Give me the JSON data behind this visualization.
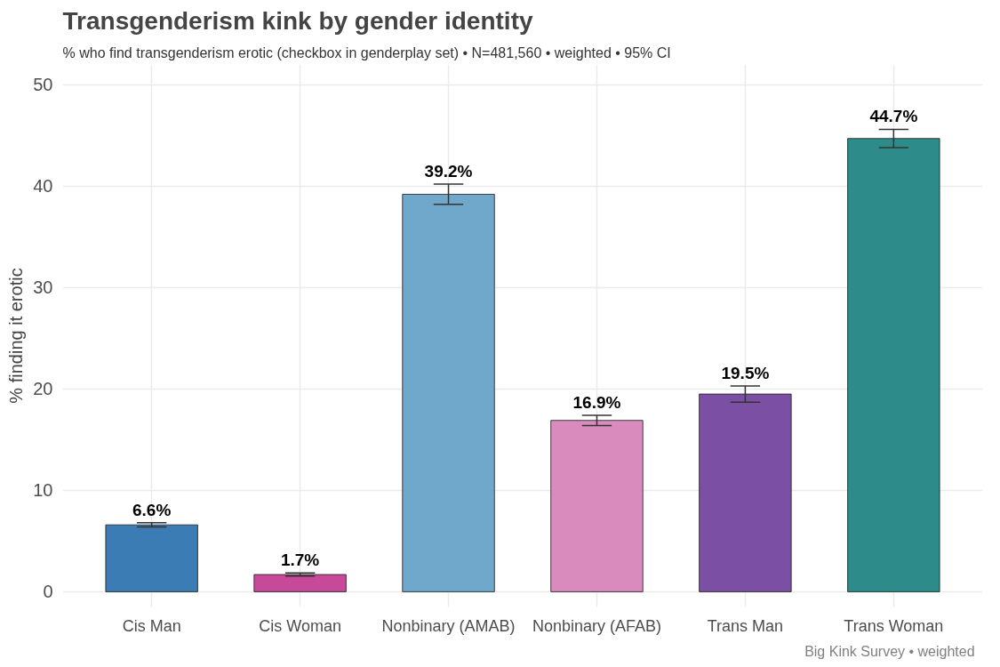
{
  "chart_data": {
    "type": "bar",
    "title": "Transgenderism kink by gender identity",
    "subtitle": "% who find transgenderism erotic (checkbox in genderplay set)  •  N=481,560  •  weighted  •  95% CI",
    "ylabel": "% finding it erotic",
    "categories": [
      "Cis Man",
      "Cis Woman",
      "Nonbinary (AMAB)",
      "Nonbinary (AFAB)",
      "Trans Man",
      "Trans Woman"
    ],
    "values": [
      6.6,
      1.7,
      39.2,
      16.9,
      19.5,
      44.7
    ],
    "colors": [
      "#3c7cb4",
      "#c64a99",
      "#6fa8cb",
      "#d98bbd",
      "#7b4fa3",
      "#2d8b89"
    ],
    "errors": [
      [
        6.4,
        6.8
      ],
      [
        1.55,
        1.85
      ],
      [
        38.2,
        40.2
      ],
      [
        16.4,
        17.4
      ],
      [
        18.7,
        20.3
      ],
      [
        43.8,
        45.6
      ]
    ],
    "value_labels": [
      "6.6%",
      "1.7%",
      "39.2%",
      "16.9%",
      "19.5%",
      "44.7%"
    ],
    "ylim": [
      -1.5,
      52
    ],
    "yticks": [
      0,
      10,
      20,
      30,
      40,
      50
    ],
    "grid": true,
    "annotations": [
      "Big Kink Survey  •  weighted"
    ]
  }
}
